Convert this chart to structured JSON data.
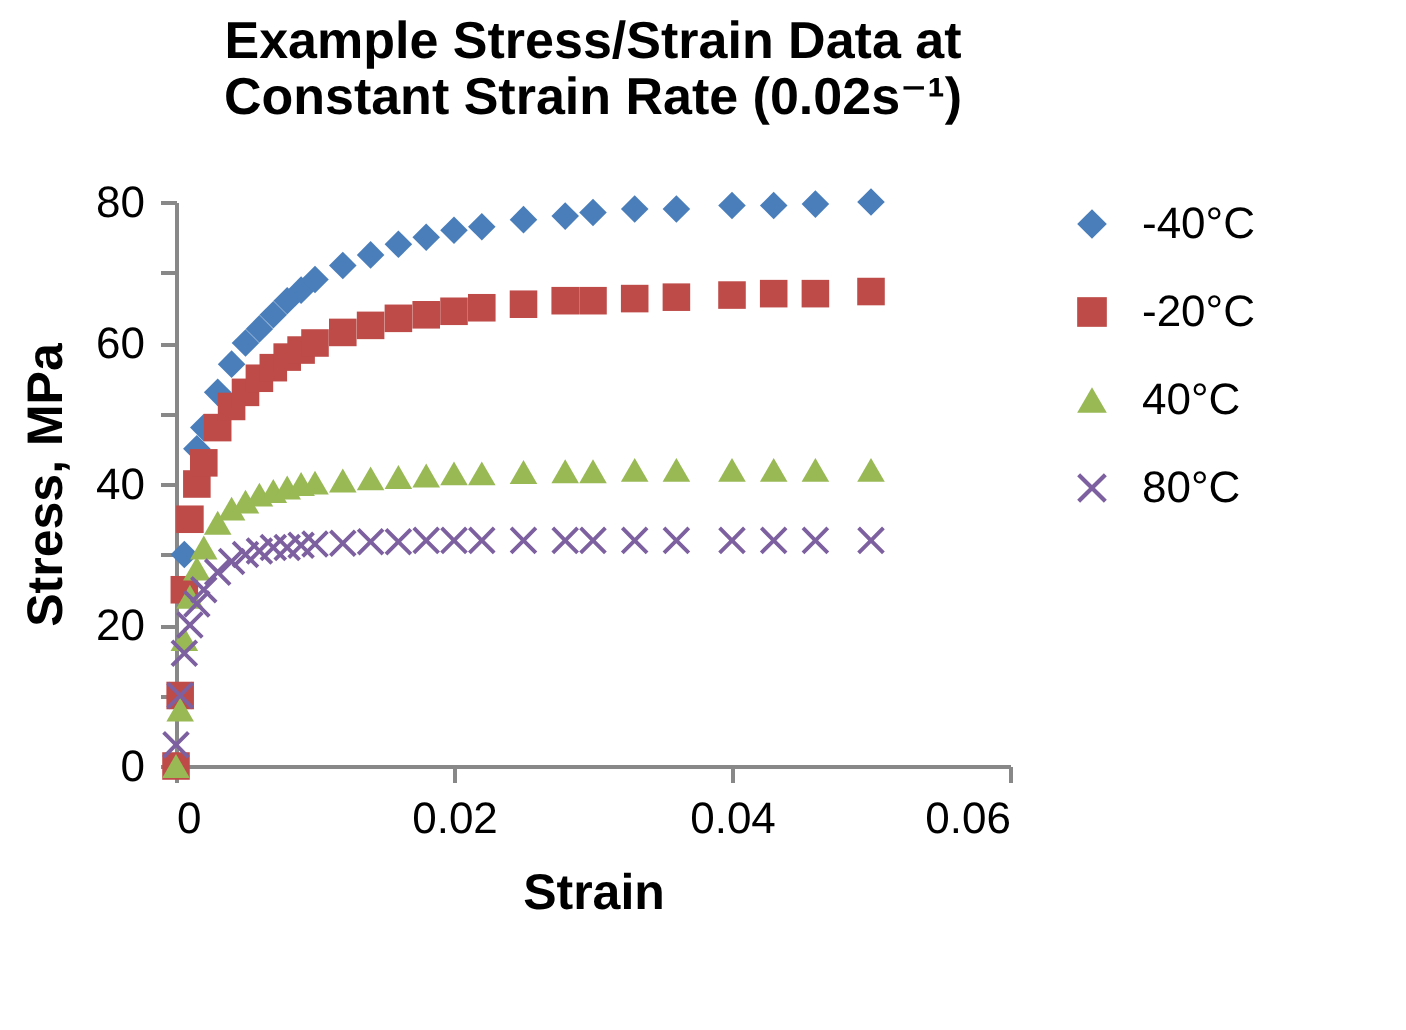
{
  "chart_data": {
    "type": "scatter",
    "title": "Example Stress/Strain Data at Constant Strain Rate (0.02s⁻¹)",
    "xlabel": "Strain",
    "ylabel": "Stress, MPa",
    "xlim": [
      0,
      0.06
    ],
    "xticks": [
      0,
      0.02,
      0.04,
      0.06
    ],
    "ylim": [
      0,
      80
    ],
    "yticks": [
      0,
      {
        "value": 10,
        "label": null
      },
      20,
      {
        "value": 30,
        "label": null
      },
      40,
      {
        "value": 50,
        "label": null
      },
      60,
      {
        "value": 70,
        "label": null
      },
      80
    ],
    "grid": false,
    "legend": "right",
    "x": [
      0,
      0.0003,
      0.0006,
      0.001,
      0.0015,
      0.002,
      0.003,
      0.004,
      0.005,
      0.006,
      0.007,
      0.008,
      0.009,
      0.01,
      0.012,
      0.014,
      0.016,
      0.018,
      0.02,
      0.022,
      0.025,
      0.028,
      0.03,
      0.033,
      0.036,
      0.04,
      0.043,
      0.046,
      0.05
    ],
    "series": [
      {
        "name": "-40°C",
        "color": "#4a7ebb",
        "marker": "diamond",
        "values": [
          null,
          null,
          30,
          null,
          45,
          48,
          53,
          57,
          60,
          62,
          64,
          66,
          67.5,
          69,
          71,
          72.5,
          74,
          75,
          76,
          76.5,
          77.5,
          78,
          78.5,
          79,
          79,
          79.5,
          79.5,
          79.7,
          80
        ]
      },
      {
        "name": "-20°C",
        "color": "#be4b48",
        "marker": "square",
        "values": [
          0,
          10,
          25,
          35,
          40,
          43,
          48,
          51,
          53,
          55,
          56.5,
          58,
          59,
          60,
          61.5,
          62.5,
          63.5,
          64,
          64.5,
          65,
          65.5,
          66,
          66,
          66.3,
          66.5,
          66.8,
          67,
          67,
          67.3
        ]
      },
      {
        "name": "40°C",
        "color": "#98b954",
        "marker": "triangle",
        "values": [
          0,
          8,
          18,
          24,
          28,
          31,
          34.5,
          36.5,
          37.5,
          38.5,
          39,
          39.5,
          40,
          40.2,
          40.5,
          40.8,
          41,
          41.2,
          41.5,
          41.5,
          41.7,
          41.8,
          41.8,
          42,
          42,
          42,
          42,
          42,
          42
        ]
      },
      {
        "name": "80°C",
        "color": "#7d60a0",
        "marker": "cross",
        "values": [
          3,
          10,
          16,
          20,
          23,
          25,
          27.5,
          29,
          30,
          30.5,
          31,
          31,
          31.3,
          31.5,
          31.6,
          31.8,
          31.8,
          32,
          32,
          32,
          32,
          32,
          32,
          32,
          32,
          32,
          32,
          32,
          32
        ]
      }
    ]
  }
}
